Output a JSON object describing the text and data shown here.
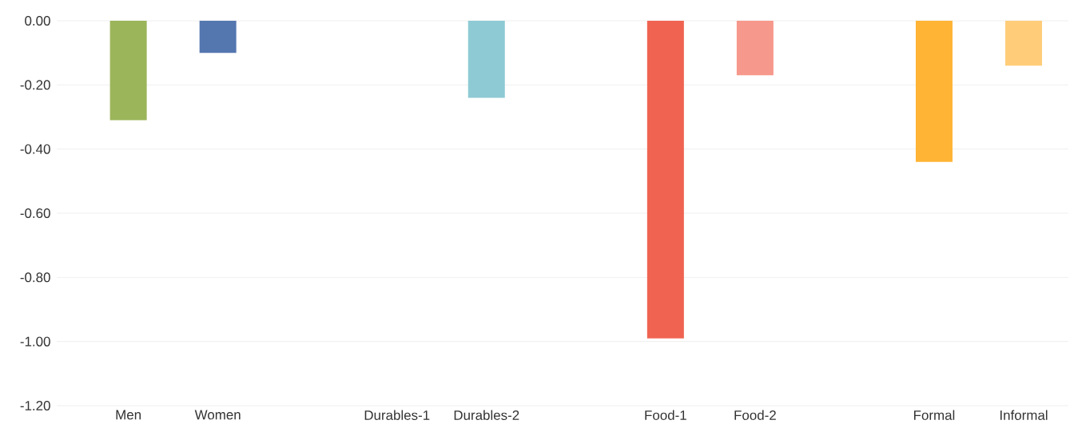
{
  "chart_data": {
    "type": "bar",
    "categories": [
      "Men",
      "Women",
      null,
      "Durables-1",
      "Durables-2",
      null,
      "Food-1",
      "Food-2",
      null,
      "Formal",
      "Informal"
    ],
    "values": [
      -0.31,
      -0.1,
      null,
      null,
      -0.24,
      null,
      -0.99,
      -0.17,
      null,
      -0.44,
      -0.14
    ],
    "colors": [
      "#9bb55a",
      "#5577b0",
      null,
      null,
      "#8ecad4",
      null,
      "#f06351",
      "#f6988b",
      null,
      "#ffb435",
      "#ffcd7a"
    ],
    "ylim": [
      -1.2,
      0
    ],
    "yticks": [
      {
        "value": 0,
        "label": "0.00"
      },
      {
        "value": -0.2,
        "label": "-0.20"
      },
      {
        "value": -0.4,
        "label": "-0.40"
      },
      {
        "value": -0.6,
        "label": "-0.60"
      },
      {
        "value": -0.8,
        "label": "-0.80"
      },
      {
        "value": -1.0,
        "label": "-1.00"
      },
      {
        "value": -1.2,
        "label": "-1.20"
      }
    ],
    "grid": "y"
  }
}
